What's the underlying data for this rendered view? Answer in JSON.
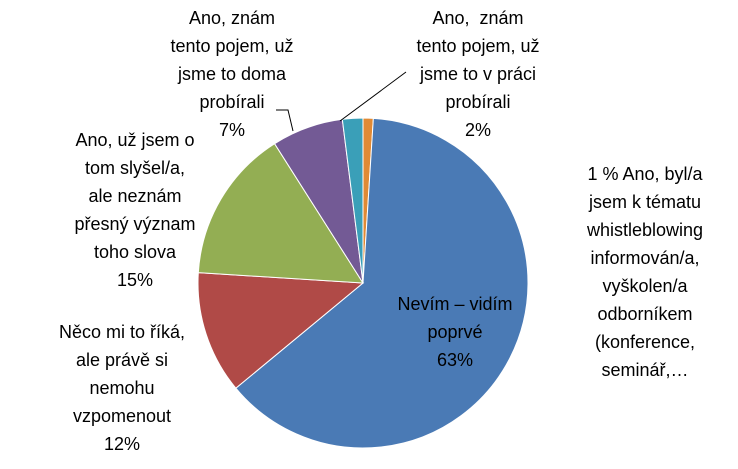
{
  "chart_data": {
    "type": "pie",
    "categories": [
      "Ano, byl/a\njsem k tématu\nwhistleblowing\ninformován/a,\nvyškolen/a\nodborníkem\n(konference,\nseminář,…",
      "Nevím – vidím\npoprvé",
      "Něco mi to říká,\nale právě si\nnemohu\nvzpomenout",
      "Ano, už jsem o\ntom slyšel/a,\nale neznám\npřesný význam\ntoho slova",
      "Ano, znám\ntento pojem, už\njsme to doma\nprobírali",
      "Ano,  znám\ntento pojem, už\njsme to v práci\nprobírali"
    ],
    "values": [
      1,
      63,
      12,
      15,
      7,
      2
    ],
    "value_labels": [
      "1 %",
      "63%",
      "12%",
      "15%",
      "7%",
      "2%"
    ],
    "colors": [
      "#e08a35",
      "#4a7ab5",
      "#b04a47",
      "#93ae53",
      "#735a95",
      "#3a9fb8"
    ]
  }
}
